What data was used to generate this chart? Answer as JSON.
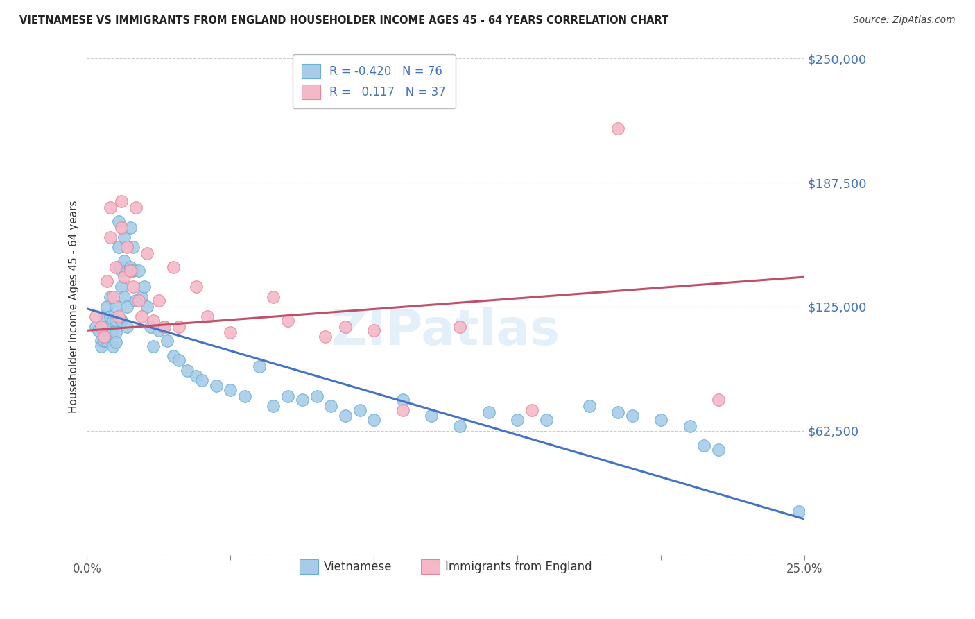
{
  "title": "VIETNAMESE VS IMMIGRANTS FROM ENGLAND HOUSEHOLDER INCOME AGES 45 - 64 YEARS CORRELATION CHART",
  "source": "Source: ZipAtlas.com",
  "ylabel": "Householder Income Ages 45 - 64 years",
  "xlim": [
    0,
    0.25
  ],
  "ylim": [
    0,
    250000
  ],
  "yticks": [
    0,
    62500,
    125000,
    187500,
    250000
  ],
  "ytick_labels": [
    "",
    "$62,500",
    "$125,000",
    "$187,500",
    "$250,000"
  ],
  "xticks": [
    0.0,
    0.05,
    0.1,
    0.15,
    0.2,
    0.25
  ],
  "xtick_labels": [
    "0.0%",
    "",
    "",
    "",
    "",
    "25.0%"
  ],
  "legend_bottom1": "Vietnamese",
  "legend_bottom2": "Immigrants from England",
  "blue_color": "#a8cce8",
  "pink_color": "#f5b8c8",
  "blue_edge_color": "#6aaed6",
  "pink_edge_color": "#e8849a",
  "blue_line_color": "#4472c4",
  "pink_line_color": "#c0506a",
  "blue_line_x": [
    0.0,
    0.25
  ],
  "blue_line_y": [
    124000,
    18000
  ],
  "pink_line_x": [
    0.0,
    0.25
  ],
  "pink_line_y": [
    113000,
    140000
  ],
  "blue_points_x": [
    0.003,
    0.004,
    0.005,
    0.005,
    0.006,
    0.006,
    0.006,
    0.007,
    0.007,
    0.007,
    0.008,
    0.008,
    0.008,
    0.009,
    0.009,
    0.009,
    0.01,
    0.01,
    0.01,
    0.01,
    0.011,
    0.011,
    0.011,
    0.012,
    0.012,
    0.012,
    0.013,
    0.013,
    0.013,
    0.014,
    0.014,
    0.015,
    0.015,
    0.016,
    0.016,
    0.017,
    0.018,
    0.019,
    0.02,
    0.021,
    0.022,
    0.023,
    0.025,
    0.027,
    0.028,
    0.03,
    0.032,
    0.035,
    0.038,
    0.04,
    0.045,
    0.05,
    0.055,
    0.06,
    0.065,
    0.07,
    0.075,
    0.08,
    0.085,
    0.09,
    0.095,
    0.1,
    0.11,
    0.12,
    0.13,
    0.14,
    0.15,
    0.16,
    0.175,
    0.185,
    0.19,
    0.2,
    0.21,
    0.215,
    0.22,
    0.248
  ],
  "blue_points_y": [
    115000,
    113000,
    108000,
    105000,
    120000,
    115000,
    108000,
    125000,
    115000,
    108000,
    130000,
    120000,
    115000,
    118000,
    112000,
    105000,
    125000,
    118000,
    112000,
    107000,
    168000,
    155000,
    145000,
    143000,
    135000,
    118000,
    160000,
    148000,
    130000,
    125000,
    115000,
    165000,
    145000,
    155000,
    143000,
    128000,
    143000,
    130000,
    135000,
    125000,
    115000,
    105000,
    113000,
    115000,
    108000,
    100000,
    98000,
    93000,
    90000,
    88000,
    85000,
    83000,
    80000,
    95000,
    75000,
    80000,
    78000,
    80000,
    75000,
    70000,
    73000,
    68000,
    78000,
    70000,
    65000,
    72000,
    68000,
    68000,
    75000,
    72000,
    70000,
    68000,
    65000,
    55000,
    53000,
    22000
  ],
  "pink_points_x": [
    0.003,
    0.005,
    0.006,
    0.007,
    0.008,
    0.008,
    0.009,
    0.01,
    0.011,
    0.012,
    0.012,
    0.013,
    0.014,
    0.015,
    0.016,
    0.017,
    0.018,
    0.019,
    0.021,
    0.023,
    0.025,
    0.027,
    0.03,
    0.032,
    0.038,
    0.042,
    0.05,
    0.065,
    0.07,
    0.083,
    0.09,
    0.1,
    0.11,
    0.13,
    0.155,
    0.185,
    0.22
  ],
  "pink_points_y": [
    120000,
    115000,
    110000,
    138000,
    160000,
    175000,
    130000,
    145000,
    120000,
    178000,
    165000,
    140000,
    155000,
    143000,
    135000,
    175000,
    128000,
    120000,
    152000,
    118000,
    128000,
    115000,
    145000,
    115000,
    135000,
    120000,
    112000,
    130000,
    118000,
    110000,
    115000,
    113000,
    73000,
    115000,
    73000,
    215000,
    78000
  ]
}
